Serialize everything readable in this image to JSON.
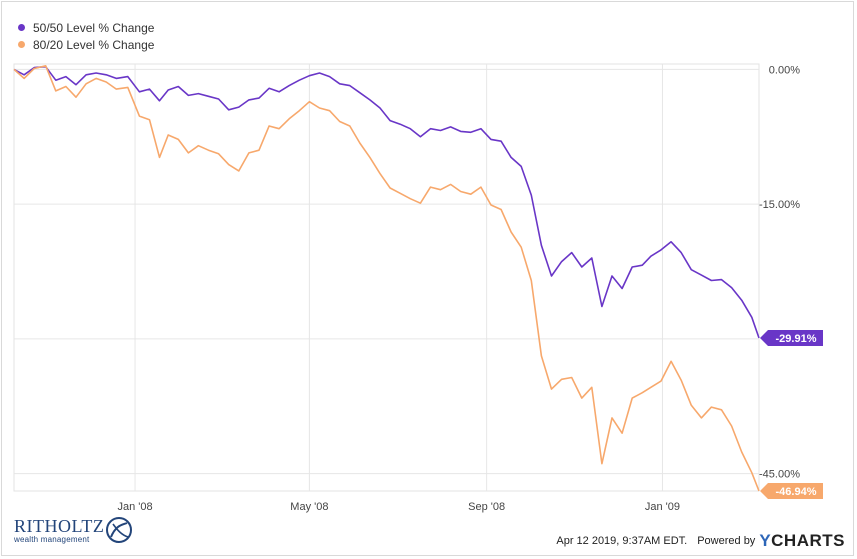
{
  "legend": [
    {
      "label": "50/50 Level % Change",
      "color": "#6936c7"
    },
    {
      "label": "80/20 Level % Change",
      "color": "#f7a86c"
    }
  ],
  "chart_data": {
    "type": "line",
    "x_ticks": [
      "Jan '08",
      "May '08",
      "Sep '08",
      "Jan '09"
    ],
    "y_ticks": [
      "0.00%",
      "-15.00%",
      "-45.00%"
    ],
    "y_range": [
      -46.94,
      0.6
    ],
    "grid": true,
    "last_value_labels": [
      "-29.91%",
      "-46.94%"
    ],
    "series": [
      {
        "name": "50/50 Level % Change",
        "color": "#6936c7",
        "points": [
          [
            "2007-10-09",
            0.0
          ],
          [
            "2007-10-16",
            -0.6
          ],
          [
            "2007-10-23",
            0.2
          ],
          [
            "2007-10-31",
            0.3
          ],
          [
            "2007-11-07",
            -1.2
          ],
          [
            "2007-11-14",
            -0.8
          ],
          [
            "2007-11-21",
            -1.7
          ],
          [
            "2007-11-28",
            -0.6
          ],
          [
            "2007-12-05",
            -0.4
          ],
          [
            "2007-12-12",
            -0.6
          ],
          [
            "2007-12-19",
            -1.0
          ],
          [
            "2007-12-27",
            -0.8
          ],
          [
            "2008-01-04",
            -2.5
          ],
          [
            "2008-01-11",
            -2.2
          ],
          [
            "2008-01-18",
            -3.5
          ],
          [
            "2008-01-24",
            -2.3
          ],
          [
            "2008-01-31",
            -1.9
          ],
          [
            "2008-02-07",
            -2.9
          ],
          [
            "2008-02-14",
            -2.7
          ],
          [
            "2008-02-21",
            -3.0
          ],
          [
            "2008-02-28",
            -3.3
          ],
          [
            "2008-03-06",
            -4.5
          ],
          [
            "2008-03-13",
            -4.2
          ],
          [
            "2008-03-20",
            -3.4
          ],
          [
            "2008-03-27",
            -3.2
          ],
          [
            "2008-04-03",
            -2.1
          ],
          [
            "2008-04-10",
            -2.5
          ],
          [
            "2008-04-17",
            -1.8
          ],
          [
            "2008-04-24",
            -1.2
          ],
          [
            "2008-05-01",
            -0.7
          ],
          [
            "2008-05-08",
            -0.4
          ],
          [
            "2008-05-15",
            -0.8
          ],
          [
            "2008-05-22",
            -1.6
          ],
          [
            "2008-05-29",
            -1.8
          ],
          [
            "2008-06-05",
            -2.6
          ],
          [
            "2008-06-12",
            -3.4
          ],
          [
            "2008-06-19",
            -4.3
          ],
          [
            "2008-06-26",
            -5.7
          ],
          [
            "2008-07-03",
            -6.1
          ],
          [
            "2008-07-10",
            -6.6
          ],
          [
            "2008-07-17",
            -7.5
          ],
          [
            "2008-07-24",
            -6.6
          ],
          [
            "2008-07-31",
            -6.8
          ],
          [
            "2008-08-07",
            -6.4
          ],
          [
            "2008-08-14",
            -6.9
          ],
          [
            "2008-08-21",
            -7.0
          ],
          [
            "2008-08-28",
            -6.6
          ],
          [
            "2008-09-04",
            -7.8
          ],
          [
            "2008-09-11",
            -8.0
          ],
          [
            "2008-09-18",
            -9.8
          ],
          [
            "2008-09-25",
            -10.8
          ],
          [
            "2008-10-02",
            -14.0
          ],
          [
            "2008-10-09",
            -19.6
          ],
          [
            "2008-10-16",
            -23.0
          ],
          [
            "2008-10-23",
            -21.4
          ],
          [
            "2008-10-30",
            -20.4
          ],
          [
            "2008-11-06",
            -22.0
          ],
          [
            "2008-11-13",
            -21.0
          ],
          [
            "2008-11-20",
            -26.4
          ],
          [
            "2008-11-27",
            -23.0
          ],
          [
            "2008-12-04",
            -24.4
          ],
          [
            "2008-12-11",
            -22.0
          ],
          [
            "2008-12-18",
            -21.8
          ],
          [
            "2008-12-24",
            -20.8
          ],
          [
            "2008-12-31",
            -20.1
          ],
          [
            "2009-01-07",
            -19.2
          ],
          [
            "2009-01-14",
            -20.4
          ],
          [
            "2009-01-21",
            -22.3
          ],
          [
            "2009-01-28",
            -22.9
          ],
          [
            "2009-02-04",
            -23.5
          ],
          [
            "2009-02-11",
            -23.4
          ],
          [
            "2009-02-18",
            -24.3
          ],
          [
            "2009-02-25",
            -25.7
          ],
          [
            "2009-03-04",
            -27.6
          ],
          [
            "2009-03-09",
            -29.91
          ]
        ]
      },
      {
        "name": "80/20 Level % Change",
        "color": "#f7a86c",
        "points": [
          [
            "2007-10-09",
            0.0
          ],
          [
            "2007-10-16",
            -1.0
          ],
          [
            "2007-10-23",
            0.1
          ],
          [
            "2007-10-31",
            0.4
          ],
          [
            "2007-11-07",
            -2.4
          ],
          [
            "2007-11-14",
            -1.9
          ],
          [
            "2007-11-21",
            -3.1
          ],
          [
            "2007-11-28",
            -1.6
          ],
          [
            "2007-12-05",
            -1.0
          ],
          [
            "2007-12-12",
            -1.4
          ],
          [
            "2007-12-19",
            -2.2
          ],
          [
            "2007-12-27",
            -2.0
          ],
          [
            "2008-01-04",
            -5.2
          ],
          [
            "2008-01-11",
            -5.6
          ],
          [
            "2008-01-18",
            -9.8
          ],
          [
            "2008-01-24",
            -7.3
          ],
          [
            "2008-01-31",
            -7.8
          ],
          [
            "2008-02-07",
            -9.3
          ],
          [
            "2008-02-14",
            -8.5
          ],
          [
            "2008-02-21",
            -9.0
          ],
          [
            "2008-02-28",
            -9.4
          ],
          [
            "2008-03-06",
            -10.6
          ],
          [
            "2008-03-13",
            -11.3
          ],
          [
            "2008-03-20",
            -9.3
          ],
          [
            "2008-03-27",
            -9.0
          ],
          [
            "2008-04-03",
            -6.3
          ],
          [
            "2008-04-10",
            -6.6
          ],
          [
            "2008-04-17",
            -5.5
          ],
          [
            "2008-04-24",
            -4.6
          ],
          [
            "2008-05-01",
            -3.6
          ],
          [
            "2008-05-08",
            -4.3
          ],
          [
            "2008-05-15",
            -4.6
          ],
          [
            "2008-05-22",
            -5.8
          ],
          [
            "2008-05-29",
            -6.3
          ],
          [
            "2008-06-05",
            -8.2
          ],
          [
            "2008-06-12",
            -9.8
          ],
          [
            "2008-06-19",
            -11.6
          ],
          [
            "2008-06-26",
            -13.2
          ],
          [
            "2008-07-03",
            -13.8
          ],
          [
            "2008-07-10",
            -14.4
          ],
          [
            "2008-07-17",
            -14.9
          ],
          [
            "2008-07-24",
            -13.1
          ],
          [
            "2008-07-31",
            -13.4
          ],
          [
            "2008-08-07",
            -12.8
          ],
          [
            "2008-08-14",
            -13.6
          ],
          [
            "2008-08-21",
            -13.9
          ],
          [
            "2008-08-28",
            -13.1
          ],
          [
            "2008-09-04",
            -15.1
          ],
          [
            "2008-09-11",
            -15.6
          ],
          [
            "2008-09-18",
            -18.1
          ],
          [
            "2008-09-25",
            -19.8
          ],
          [
            "2008-10-02",
            -23.5
          ],
          [
            "2008-10-09",
            -31.9
          ],
          [
            "2008-10-16",
            -35.6
          ],
          [
            "2008-10-23",
            -34.5
          ],
          [
            "2008-10-30",
            -34.3
          ],
          [
            "2008-11-06",
            -36.6
          ],
          [
            "2008-11-13",
            -35.4
          ],
          [
            "2008-11-20",
            -43.9
          ],
          [
            "2008-11-27",
            -38.8
          ],
          [
            "2008-12-04",
            -40.5
          ],
          [
            "2008-12-11",
            -36.6
          ],
          [
            "2008-12-18",
            -36.0
          ],
          [
            "2008-12-24",
            -35.4
          ],
          [
            "2008-12-31",
            -34.7
          ],
          [
            "2009-01-07",
            -32.5
          ],
          [
            "2009-01-14",
            -34.6
          ],
          [
            "2009-01-21",
            -37.4
          ],
          [
            "2009-01-28",
            -38.8
          ],
          [
            "2009-02-04",
            -37.6
          ],
          [
            "2009-02-11",
            -37.9
          ],
          [
            "2009-02-18",
            -39.7
          ],
          [
            "2009-02-25",
            -42.6
          ],
          [
            "2009-03-04",
            -44.9
          ],
          [
            "2009-03-09",
            -46.94
          ]
        ]
      }
    ]
  },
  "footer": {
    "brand_name": "RITHOLTZ",
    "brand_sub": "wealth management",
    "timestamp": "Apr 12 2019, 9:37AM EDT.",
    "powered_by": "Powered by",
    "ycharts_y": "Y",
    "ycharts_rest": "CHARTS"
  }
}
